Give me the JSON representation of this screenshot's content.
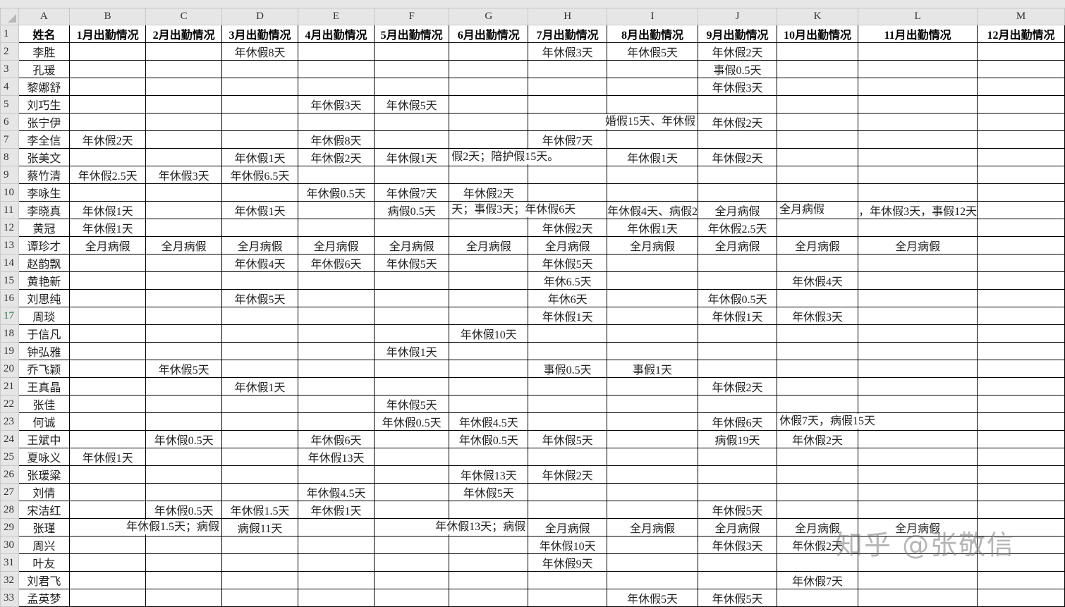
{
  "columns": [
    "A",
    "B",
    "C",
    "D",
    "E",
    "F",
    "G",
    "H",
    "I",
    "J",
    "K",
    "L",
    "M"
  ],
  "rows": [
    [
      "姓名",
      "1月出勤情况",
      "2月出勤情况",
      "3月出勤情况",
      "4月出勤情况",
      "5月出勤情况",
      "6月出勤情况",
      "7月出勤情况",
      "8月出勤情况",
      "9月出勤情况",
      "10月出勤情况",
      "11月出勤情况",
      "12月出勤情况"
    ],
    [
      "李胜",
      "",
      "",
      "年休假8天",
      "",
      "",
      "",
      "年休假3天",
      "年休假5天",
      "年休假2天",
      "",
      "",
      ""
    ],
    [
      "孔瑗",
      "",
      "",
      "",
      "",
      "",
      "",
      "",
      "",
      "事假0.5天",
      "",
      "",
      ""
    ],
    [
      "黎娜舒",
      "",
      "",
      "",
      "",
      "",
      "",
      "",
      "",
      "年休假3天",
      "",
      "",
      ""
    ],
    [
      "刘巧生",
      "",
      "",
      "",
      "年休假3天",
      "年休假5天",
      "",
      "",
      "",
      "",
      "",
      "",
      ""
    ],
    [
      "张宁伊",
      "",
      "",
      "",
      "",
      "",
      "",
      "",
      "婚假15天、年休假",
      "年休假2天",
      "",
      "",
      ""
    ],
    [
      "李全信",
      "年休假2天",
      "",
      "",
      "年休假8天",
      "",
      "",
      "年休假7天",
      "",
      "",
      "",
      "",
      ""
    ],
    [
      "张美文",
      "",
      "",
      "年休假1天",
      "年休假2天",
      "年休假1天",
      "假2天；陪护假15天。",
      "",
      "年休假1天",
      "年休假2天",
      "",
      "",
      ""
    ],
    [
      "蔡竹清",
      "年休假2.5天",
      "年休假3天",
      "年休假6.5天",
      "",
      "",
      "",
      "",
      "",
      "",
      "",
      "",
      ""
    ],
    [
      "李咏生",
      "",
      "",
      "",
      "年休假0.5天",
      "年休假7天",
      "年休假2天",
      "",
      "",
      "",
      "",
      "",
      ""
    ],
    [
      "李晓真",
      "年休假1天",
      "",
      "年休假1天",
      "",
      "病假0.5天",
      "天；事假3天；年休假6天",
      "",
      "年休假4天、病假2",
      "全月病假",
      "全月病假",
      "，年休假3天，事假12天",
      ""
    ],
    [
      "黄冠",
      "年休假1天",
      "",
      "",
      "",
      "",
      "",
      "年休假2天",
      "年休假1天",
      "年休假2.5天",
      "",
      "",
      ""
    ],
    [
      "谭珍才",
      "全月病假",
      "全月病假",
      "全月病假",
      "全月病假",
      "全月病假",
      "全月病假",
      "全月病假",
      "全月病假",
      "全月病假",
      "全月病假",
      "全月病假",
      ""
    ],
    [
      "赵韵飘",
      "",
      "",
      "年休假4天",
      "年休假6天",
      "年休假5天",
      "",
      "年休假5天",
      "",
      "",
      "",
      "",
      ""
    ],
    [
      "黄艳新",
      "",
      "",
      "",
      "",
      "",
      "",
      "年休6.5天",
      "",
      "",
      "年休假4天",
      "",
      ""
    ],
    [
      "刘思纯",
      "",
      "",
      "年休假5天",
      "",
      "",
      "",
      "年休6天",
      "",
      "年休假0.5天",
      "",
      "",
      ""
    ],
    [
      "周琰",
      "",
      "",
      "",
      "",
      "",
      "",
      "年休假1天",
      "",
      "年休假1天",
      "年休假3天",
      "",
      ""
    ],
    [
      "于信凡",
      "",
      "",
      "",
      "",
      "",
      "年休假10天",
      "",
      "",
      "",
      "",
      "",
      ""
    ],
    [
      "钟弘雅",
      "",
      "",
      "",
      "",
      "年休假1天",
      "",
      "",
      "",
      "",
      "",
      "",
      ""
    ],
    [
      "乔飞颖",
      "",
      "年休假5天",
      "",
      "",
      "",
      "",
      "事假0.5天",
      "事假1天",
      "",
      "",
      "",
      ""
    ],
    [
      "王真晶",
      "",
      "",
      "年休假1天",
      "",
      "",
      "",
      "",
      "",
      "年休假2天",
      "",
      "",
      ""
    ],
    [
      "张佳",
      "",
      "",
      "",
      "",
      "年休假5天",
      "",
      "",
      "",
      "",
      "",
      "",
      ""
    ],
    [
      "何诚",
      "",
      "",
      "",
      "",
      "年休假0.5天",
      "年休假4.5天",
      "",
      "",
      "年休假6天",
      "休假7天，病假15天",
      "",
      ""
    ],
    [
      "王斌中",
      "",
      "年休假0.5天",
      "",
      "年休假6天",
      "",
      "年休假0.5天",
      "年休假5天",
      "",
      "病假19天",
      "年休假2天",
      "",
      ""
    ],
    [
      "夏咏义",
      "年休假1天",
      "",
      "",
      "年休假13天",
      "",
      "",
      "",
      "",
      "",
      "",
      "",
      ""
    ],
    [
      "张瑗粱",
      "",
      "",
      "",
      "",
      "",
      "年休假13天",
      "年休假2天",
      "",
      "",
      "",
      "",
      ""
    ],
    [
      "刘倩",
      "",
      "",
      "",
      "年休假4.5天",
      "",
      "年休假5天",
      "",
      "",
      "",
      "",
      "",
      ""
    ],
    [
      "宋洁红",
      "",
      "年休假0.5天",
      "年休假1.5天",
      "年休假1天",
      "",
      "",
      "",
      "",
      "年休假5天",
      "",
      "",
      ""
    ],
    [
      "张瑾",
      "",
      "年休假1.5天；病假",
      "病假11天",
      "",
      "",
      "年休假13天；病假",
      "全月病假",
      "全月病假",
      "全月病假",
      "全月病假",
      "全月病假",
      ""
    ],
    [
      "周兴",
      "",
      "",
      "",
      "",
      "",
      "",
      "年休假10天",
      "",
      "年休假3天",
      "年休假2天",
      "",
      ""
    ],
    [
      "叶友",
      "",
      "",
      "",
      "",
      "",
      "",
      "年休假9天",
      "",
      "",
      "",
      "",
      ""
    ],
    [
      "刘君飞",
      "",
      "",
      "",
      "",
      "",
      "",
      "",
      "",
      "",
      "年休假7天",
      "",
      ""
    ],
    [
      "孟英梦",
      "",
      "",
      "",
      "",
      "",
      "",
      "",
      "年休假5天",
      "年休假5天",
      "",
      "",
      ""
    ]
  ],
  "selected_row": 17,
  "watermark": "知乎 @张敬信"
}
